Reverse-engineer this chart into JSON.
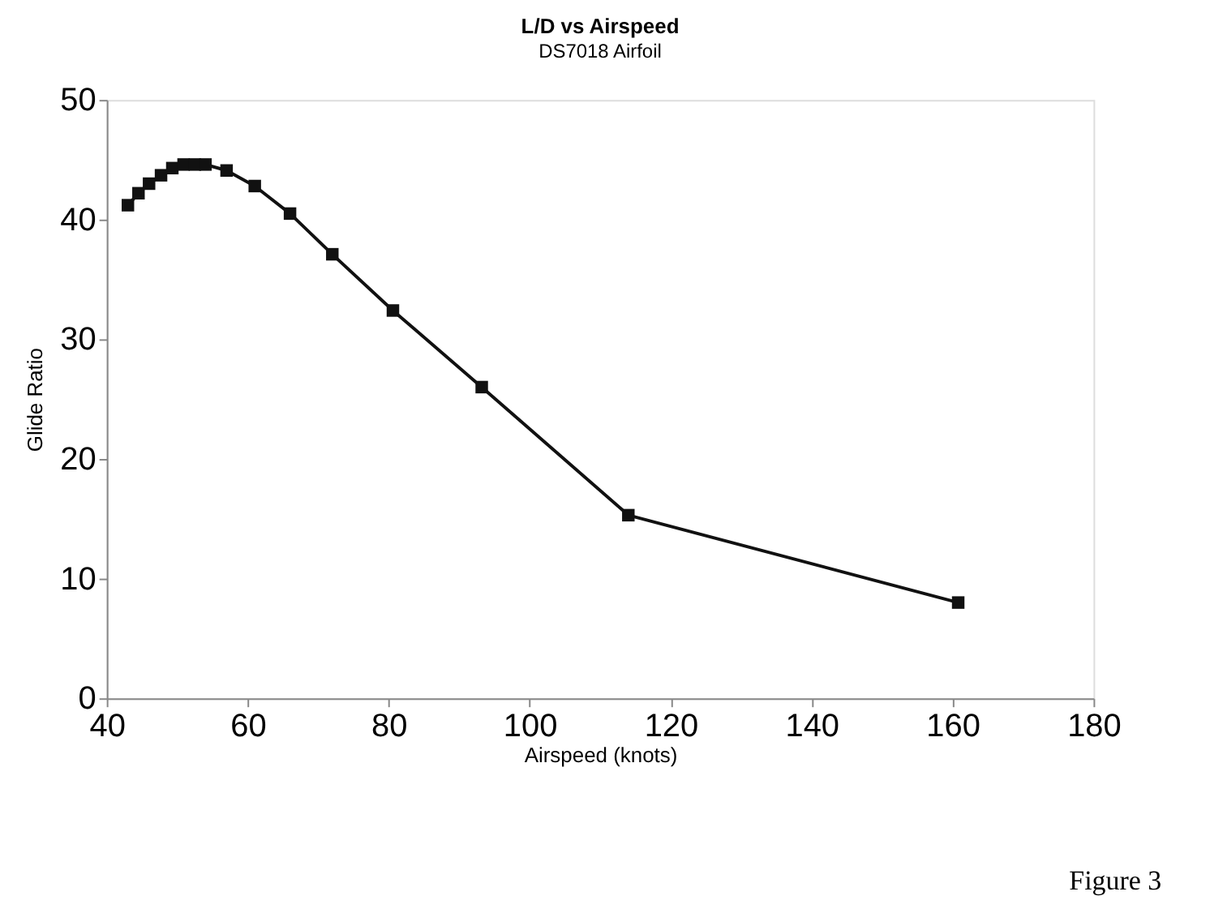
{
  "chart_data": {
    "type": "line",
    "title": "L/D vs Airspeed",
    "subtitle": "DS7018 Airfoil",
    "xlabel": "Airspeed (knots)",
    "ylabel": "Glide Ratio",
    "x": [
      43,
      44.5,
      46,
      47.7,
      49.3,
      50.9,
      52.5,
      54,
      57,
      61,
      66,
      72,
      80.6,
      93.2,
      114,
      160.8
    ],
    "series": [
      {
        "color": "#111111",
        "values": [
          41.2,
          42.2,
          43,
          43.7,
          44.3,
          44.6,
          44.6,
          44.6,
          44.1,
          42.8,
          40.5,
          37.1,
          32.4,
          26,
          15.3,
          8
        ]
      }
    ],
    "xlim": [
      40,
      180
    ],
    "xticks": [
      40,
      60,
      80,
      100,
      120,
      140,
      160,
      180
    ],
    "ylim": [
      0,
      50
    ],
    "yticks": [
      0,
      10,
      20,
      30,
      40,
      50
    ],
    "grid": false,
    "legend": false,
    "marker": "square",
    "line_style": "solid",
    "annotations": [
      "Figure 3"
    ]
  }
}
